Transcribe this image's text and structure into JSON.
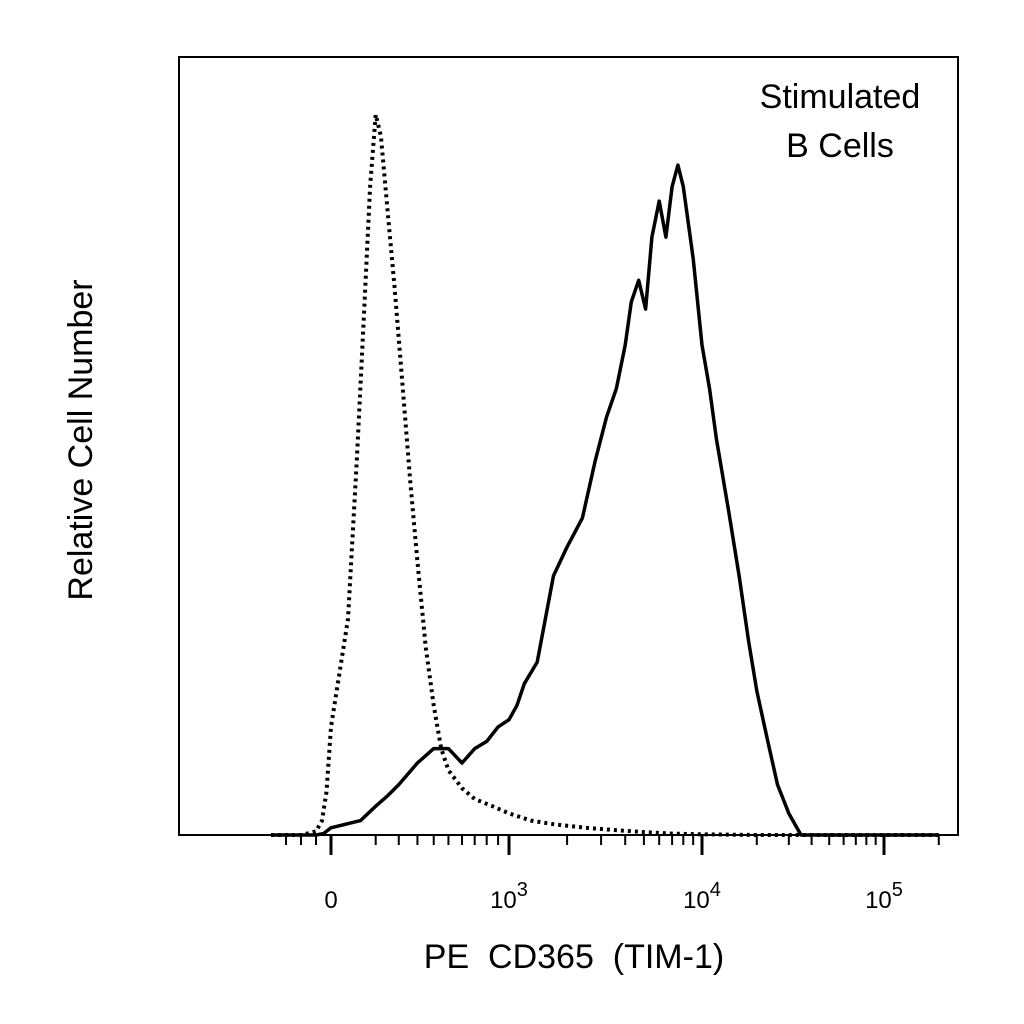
{
  "chart_data": {
    "type": "line",
    "title": "",
    "xlabel": "PE  CD365  (TIM-1)",
    "ylabel": "Relative Cell Number",
    "annotation": [
      "Stimulated",
      "B Cells"
    ],
    "x_scale": "logicle",
    "xlim": [
      -400,
      200000
    ],
    "ylim": [
      0,
      1.08
    ],
    "grid": false,
    "x_ticks": [
      {
        "value": 0,
        "base": "0",
        "exp": ""
      },
      {
        "value": 1000,
        "base": "10",
        "exp": "3"
      },
      {
        "value": 10000,
        "base": "10",
        "exp": "4"
      },
      {
        "value": 100000,
        "base": "10",
        "exp": "5"
      }
    ],
    "series": [
      {
        "style": "dotted",
        "x": [
          -400,
          -200,
          -100,
          -60,
          -30,
          0,
          20,
          40,
          60,
          80,
          100,
          120,
          150,
          180,
          220,
          260,
          300,
          350,
          400,
          450,
          500,
          600,
          700,
          850,
          1000,
          1300,
          1700,
          2500,
          3500,
          5000,
          7000,
          10000,
          20000,
          50000,
          200000
        ],
        "y": [
          0,
          0,
          0.005,
          0.02,
          0.06,
          0.15,
          0.3,
          0.52,
          0.72,
          0.9,
          1.0,
          0.97,
          0.86,
          0.76,
          0.62,
          0.49,
          0.38,
          0.26,
          0.18,
          0.12,
          0.09,
          0.065,
          0.05,
          0.04,
          0.03,
          0.02,
          0.015,
          0.01,
          0.007,
          0.004,
          0.002,
          0.001,
          0,
          0,
          0
        ]
      },
      {
        "style": "solid",
        "x": [
          -400,
          -100,
          -50,
          0,
          50,
          100,
          150,
          200,
          300,
          400,
          500,
          600,
          700,
          800,
          900,
          1000,
          1100,
          1200,
          1400,
          1700,
          2000,
          2400,
          2800,
          3200,
          3600,
          4000,
          4300,
          4700,
          5100,
          5500,
          6000,
          6500,
          7000,
          7500,
          8000,
          9000,
          10000,
          11000,
          12000,
          14000,
          16000,
          18000,
          20000,
          23000,
          26000,
          30000,
          35000,
          200000
        ],
        "y": [
          0,
          0,
          0.002,
          0.01,
          0.02,
          0.04,
          0.055,
          0.07,
          0.1,
          0.12,
          0.12,
          0.1,
          0.12,
          0.13,
          0.15,
          0.16,
          0.18,
          0.21,
          0.24,
          0.36,
          0.4,
          0.44,
          0.52,
          0.58,
          0.62,
          0.68,
          0.74,
          0.77,
          0.73,
          0.83,
          0.88,
          0.83,
          0.9,
          0.93,
          0.9,
          0.8,
          0.68,
          0.62,
          0.55,
          0.45,
          0.36,
          0.27,
          0.2,
          0.13,
          0.07,
          0.03,
          0,
          0
        ]
      }
    ]
  }
}
